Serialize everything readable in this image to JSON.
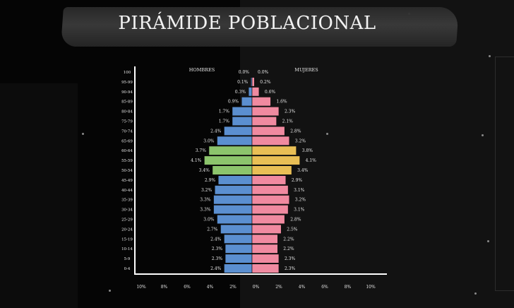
{
  "title": "PIRÁMIDE POBLACIONAL",
  "chart_data": {
    "type": "bar",
    "orientation": "horizontal-population-pyramid",
    "title": "PIRÁMIDE POBLACIONAL",
    "categories": [
      "100",
      "95-99",
      "90-94",
      "85-89",
      "80-84",
      "75-79",
      "70-74",
      "65-69",
      "60-64",
      "55-59",
      "50-54",
      "45-49",
      "40-44",
      "35-39",
      "30-34",
      "25-29",
      "20-24",
      "15-19",
      "10-14",
      "5-9",
      "0-4"
    ],
    "series": [
      {
        "name": "HOMBRES",
        "side": "left",
        "color": "#5b8fd0",
        "highlight_color": "#8cc46c",
        "values": [
          0.0,
          0.1,
          0.3,
          0.9,
          1.7,
          1.7,
          2.4,
          3.0,
          3.7,
          4.1,
          3.4,
          2.9,
          3.2,
          3.3,
          3.3,
          3.0,
          2.7,
          2.4,
          2.3,
          2.3,
          2.4
        ],
        "labels": [
          "0.0%",
          "0.1%",
          "0.3%",
          "0.9%",
          "1.7%",
          "1.7%",
          "2.4%",
          "3.0%",
          "3.7%",
          "4.1%",
          "3.4%",
          "2.9%",
          "3.2%",
          "3.3%",
          "3.3%",
          "3.0%",
          "2.7%",
          "2.4%",
          "2.3%",
          "2.3%",
          "2.4%"
        ]
      },
      {
        "name": "MUJERES",
        "side": "right",
        "color": "#f08aa0",
        "highlight_color": "#e9bf55",
        "values": [
          0.0,
          0.2,
          0.6,
          1.6,
          2.3,
          2.1,
          2.8,
          3.2,
          3.8,
          4.1,
          3.4,
          2.9,
          3.1,
          3.2,
          3.1,
          2.8,
          2.5,
          2.2,
          2.2,
          2.3,
          2.3
        ],
        "labels": [
          "0.0%",
          "0.2%",
          "0.6%",
          "1.6%",
          "2.3%",
          "2.1%",
          "2.8%",
          "3.2%",
          "3.8%",
          "4.1%",
          "3.4%",
          "2.9%",
          "3.1%",
          "3.2%",
          "3.1%",
          "2.8%",
          "2.5%",
          "2.2%",
          "2.2%",
          "2.3%",
          "2.3%"
        ]
      }
    ],
    "highlighted_categories": [
      "60-64",
      "55-59",
      "50-54"
    ],
    "x_ticks": [
      "10%",
      "8%",
      "6%",
      "4%",
      "2%",
      "0%",
      "2%",
      "4%",
      "6%",
      "8%",
      "10%"
    ],
    "xlim": [
      -10,
      10
    ],
    "grid": false,
    "legend": "top-labels"
  }
}
